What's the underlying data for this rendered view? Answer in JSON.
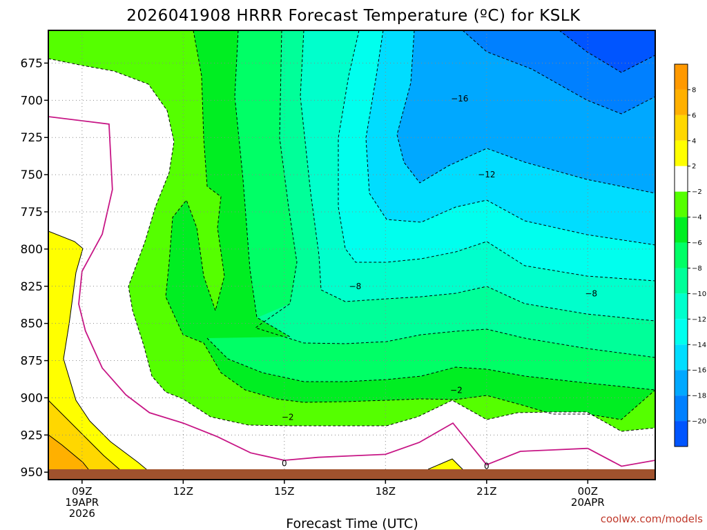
{
  "colors": {
    "yellow": "#FFFF00",
    "gold": "#FFD700",
    "orange": "#FFB000",
    "white": "#FFFFFF",
    "green_2_4": "#55FF00",
    "green_4_6": "#00EE22",
    "green_6_8": "#00FF66",
    "green_8_10": "#00FF99",
    "teal_10_12": "#00FFCC",
    "teal_12_14": "#00FFEE",
    "cyan_14_16": "#00DDFF",
    "blue_16_18": "#00A8FF",
    "blue_18_20": "#0080FF",
    "blue_20": "#0055FF",
    "ground": "#A0522D",
    "freezing_line": "#C71585"
  },
  "chart_data": {
    "type": "heatmap",
    "title": "2026041908 HRRR Forecast Temperature (ºC) for KSLK",
    "xlabel": "Forecast Time (UTC)",
    "ylabel": "",
    "credit": "coolwx.com/models",
    "x_ticks": [
      {
        "hour": 9,
        "label": "09Z",
        "sub1": "19APR",
        "sub2": "2026"
      },
      {
        "hour": 12,
        "label": "12Z",
        "sub1": "",
        "sub2": ""
      },
      {
        "hour": 15,
        "label": "15Z",
        "sub1": "",
        "sub2": ""
      },
      {
        "hour": 18,
        "label": "18Z",
        "sub1": "",
        "sub2": ""
      },
      {
        "hour": 21,
        "label": "21Z",
        "sub1": "",
        "sub2": ""
      },
      {
        "hour": 24,
        "label": "00Z",
        "sub1": "20APR",
        "sub2": ""
      }
    ],
    "y_ticks": [
      675,
      700,
      725,
      750,
      775,
      800,
      825,
      850,
      875,
      900,
      925,
      950
    ],
    "xlim": [
      8,
      26
    ],
    "ylim_hPa": [
      653,
      955
    ],
    "colorbar": {
      "ticks": [
        "8",
        "6",
        "4",
        "2",
        "−2",
        "−4",
        "−6",
        "−8",
        "−10",
        "−12",
        "−14",
        "−16",
        "−18",
        "−20"
      ],
      "colors": [
        "#FF9900",
        "#FFB000",
        "#FFD700",
        "#FFFF00",
        "#FFFFFF",
        "#55FF00",
        "#00EE22",
        "#00FF66",
        "#00FF99",
        "#00FFCC",
        "#00FFEE",
        "#00DDFF",
        "#00A8FF",
        "#0080FF",
        "#0055FF"
      ]
    },
    "contour_labels": [
      {
        "text": "−16",
        "x": 20.2,
        "p": 699
      },
      {
        "text": "−12",
        "x": 21.0,
        "p": 750
      },
      {
        "text": "−8",
        "x": 17.1,
        "p": 825
      },
      {
        "text": "−8",
        "x": 24.1,
        "p": 830
      },
      {
        "text": "−2",
        "x": 20.1,
        "p": 895
      },
      {
        "text": "−2",
        "x": 15.1,
        "p": 913
      },
      {
        "text": "0",
        "x": 15.0,
        "p": 944
      },
      {
        "text": "0",
        "x": 21.0,
        "p": 946
      }
    ],
    "zero_line": [
      [
        8.0,
        711
      ],
      [
        9.8,
        716
      ],
      [
        9.9,
        760
      ],
      [
        9.6,
        790
      ],
      [
        9.0,
        815
      ],
      [
        8.9,
        837
      ],
      [
        9.1,
        855
      ],
      [
        9.6,
        880
      ],
      [
        10.3,
        898
      ],
      [
        11.0,
        910
      ],
      [
        12.0,
        917
      ],
      [
        13.0,
        926
      ],
      [
        14.0,
        937
      ],
      [
        15.0,
        942
      ],
      [
        16.0,
        940
      ],
      [
        17.0,
        939
      ],
      [
        18.0,
        938
      ],
      [
        19.0,
        930
      ],
      [
        20.0,
        917
      ],
      [
        21.0,
        945
      ],
      [
        22.0,
        936
      ],
      [
        23.0,
        935
      ],
      [
        24.0,
        934
      ],
      [
        25.0,
        946
      ],
      [
        26.0,
        942
      ]
    ]
  }
}
